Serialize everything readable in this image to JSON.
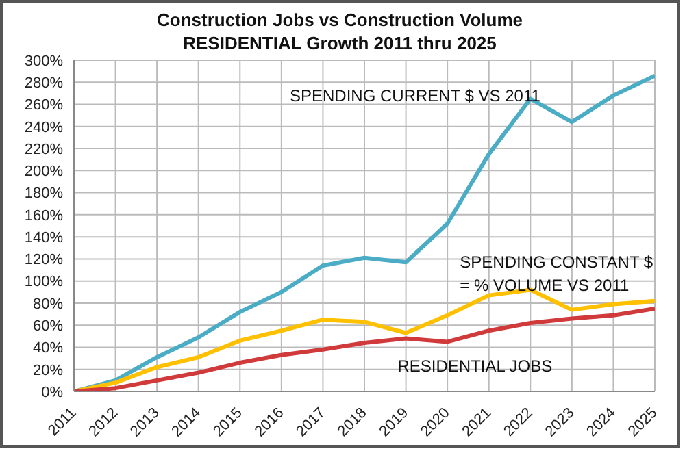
{
  "chart_data": {
    "type": "line",
    "title": "Construction Jobs vs Construction Volume",
    "subtitle": "RESIDENTIAL Growth 2011 thru 2025",
    "categories": [
      "2011",
      "2012",
      "2013",
      "2014",
      "2015",
      "2016",
      "2017",
      "2018",
      "2019",
      "2020",
      "2021",
      "2022",
      "2023",
      "2024",
      "2025"
    ],
    "series": [
      {
        "name": "SPENDING CURRENT $ VS 2011",
        "color": "#4bacc6",
        "values": [
          0,
          10,
          31,
          49,
          72,
          90,
          114,
          121,
          117,
          152,
          215,
          265,
          244,
          268,
          286
        ]
      },
      {
        "name": "SPENDING CONSTANT $ = % VOLUME VS 2011",
        "color": "#ffc000",
        "values": [
          0,
          8,
          22,
          31,
          46,
          55,
          65,
          63,
          53,
          69,
          87,
          92,
          74,
          79,
          82
        ]
      },
      {
        "name": "RESIDENTIAL JOBS",
        "color": "#d03a3a",
        "values": [
          0,
          3,
          10,
          17,
          26,
          33,
          38,
          44,
          48,
          45,
          55,
          62,
          66,
          69,
          75
        ]
      }
    ],
    "ylim": [
      0,
      300
    ],
    "yticks": [
      {
        "value": 0,
        "label": "0%"
      },
      {
        "value": 20,
        "label": "20%"
      },
      {
        "value": 40,
        "label": "40%"
      },
      {
        "value": 60,
        "label": "60%"
      },
      {
        "value": 80,
        "label": "80%"
      },
      {
        "value": 100,
        "label": "100%"
      },
      {
        "value": 120,
        "label": "120%"
      },
      {
        "value": 140,
        "label": "140%"
      },
      {
        "value": 160,
        "label": "160%"
      },
      {
        "value": 180,
        "label": "180%"
      },
      {
        "value": 200,
        "label": "200%"
      },
      {
        "value": 220,
        "label": "220%"
      },
      {
        "value": 240,
        "label": "240%"
      },
      {
        "value": 260,
        "label": "260%"
      },
      {
        "value": 280,
        "label": "280%"
      },
      {
        "value": 300,
        "label": "300%"
      }
    ],
    "grid": true,
    "legend": false,
    "marker": "none",
    "line_style": "solid"
  }
}
